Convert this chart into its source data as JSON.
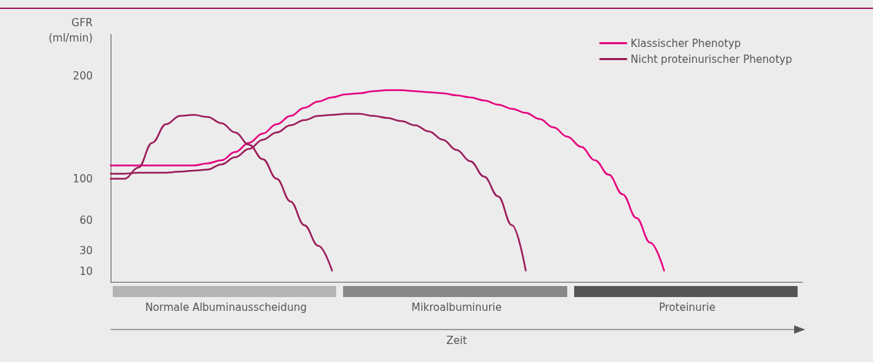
{
  "chart_data": {
    "type": "line",
    "ylabel": "GFR (ml/min)",
    "categories": [
      null,
      null,
      null,
      null,
      null,
      null,
      null,
      null,
      null,
      null,
      null,
      null,
      null,
      null,
      null,
      null,
      null,
      null,
      null,
      null,
      null,
      null,
      null,
      null,
      null,
      null,
      null,
      null,
      null,
      null,
      null,
      null,
      null,
      null,
      null,
      null,
      null,
      null,
      null,
      null,
      null,
      null,
      null,
      null,
      null,
      null,
      null,
      null,
      null,
      null,
      null
    ],
    "series": [
      {
        "name": "Klassischer Phenotyp",
        "color": "#e6007e",
        "values": [
          113,
          113,
          113,
          113,
          113,
          113,
          113,
          115,
          118,
          126,
          135,
          144,
          153,
          161,
          169,
          175,
          179,
          182,
          183,
          185,
          186,
          186,
          185,
          184,
          183,
          181,
          179,
          176,
          172,
          168,
          164,
          158,
          150,
          141,
          131,
          118,
          104,
          85,
          62,
          38,
          11,
          null,
          null,
          null,
          null,
          null,
          null,
          null,
          null,
          null,
          null
        ]
      },
      {
        "name": "Nicht proteinurischer Phenotyp",
        "color": "#9b1b5a",
        "values": [
          100,
          100,
          111,
          135,
          153,
          161,
          162,
          160,
          154,
          145,
          133,
          119,
          100,
          78,
          55,
          35,
          11,
          null,
          null,
          null,
          null,
          null,
          null,
          null,
          null,
          null,
          null,
          null,
          null,
          null,
          null,
          null,
          null,
          null,
          null,
          null,
          null,
          null,
          null,
          null,
          null,
          null,
          null,
          null,
          null,
          null,
          null,
          null,
          null,
          null,
          null
        ]
      },
      {
        "color": "#9b1b5a",
        "values": [
          105,
          105,
          106,
          106,
          106,
          107,
          108,
          109,
          114,
          121,
          129,
          138,
          145,
          152,
          157,
          161,
          162,
          163,
          163,
          161,
          159,
          156,
          152,
          146,
          138,
          128,
          117,
          102,
          83,
          55,
          11,
          null,
          null,
          null,
          null,
          null,
          null,
          null,
          null,
          null,
          null,
          null,
          null,
          null,
          null,
          null,
          null,
          null,
          null,
          null,
          null
        ]
      }
    ],
    "ylim": [
      0,
      240
    ],
    "yticks": [
      10,
      30,
      60,
      100,
      200
    ],
    "grid": false,
    "legend": "top right",
    "marker": "none",
    "line_style": "solid",
    "annotations": [
      "Normale Albuminausscheidung",
      "Mikroalbuminurie",
      "Proteinurie",
      "Zeit"
    ]
  }
}
